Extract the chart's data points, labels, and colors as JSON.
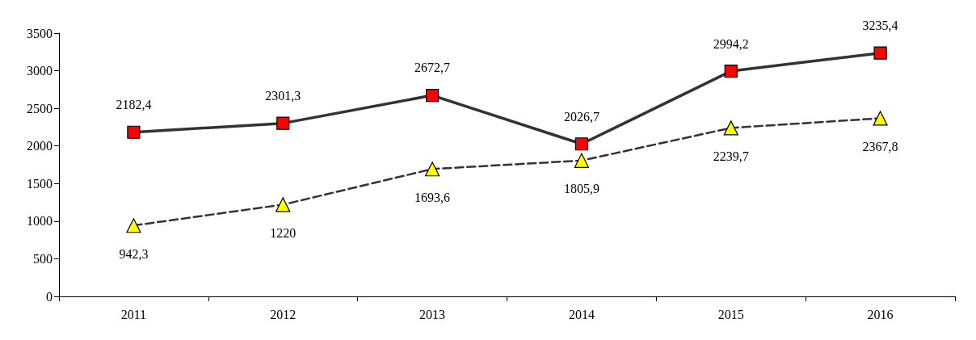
{
  "chart_data": {
    "type": "line",
    "categories": [
      "2011",
      "2012",
      "2013",
      "2014",
      "2015",
      "2016"
    ],
    "series": [
      {
        "color": "#ff0000",
        "marker": "square",
        "line_style": "solid",
        "values": [
          2182.4,
          2301.3,
          2672.7,
          2026.7,
          2994.2,
          3235.4
        ],
        "value_labels": [
          "2182,4",
          "2301,3",
          "2672,7",
          "2026,7",
          "2994,2",
          "3235,4"
        ]
      },
      {
        "color": "#ffff00",
        "marker": "triangle",
        "line_style": "dashed",
        "values": [
          942.3,
          1220,
          1693.6,
          1805.9,
          2239.7,
          2367.8
        ],
        "value_labels": [
          "942,3",
          "1220",
          "1693,6",
          "1805,9",
          "2239,7",
          "2367,8"
        ]
      }
    ],
    "ylim": [
      0,
      3500
    ],
    "yticks": [
      0,
      500,
      1000,
      1500,
      2000,
      2500,
      3000,
      3500
    ],
    "grid": false
  }
}
